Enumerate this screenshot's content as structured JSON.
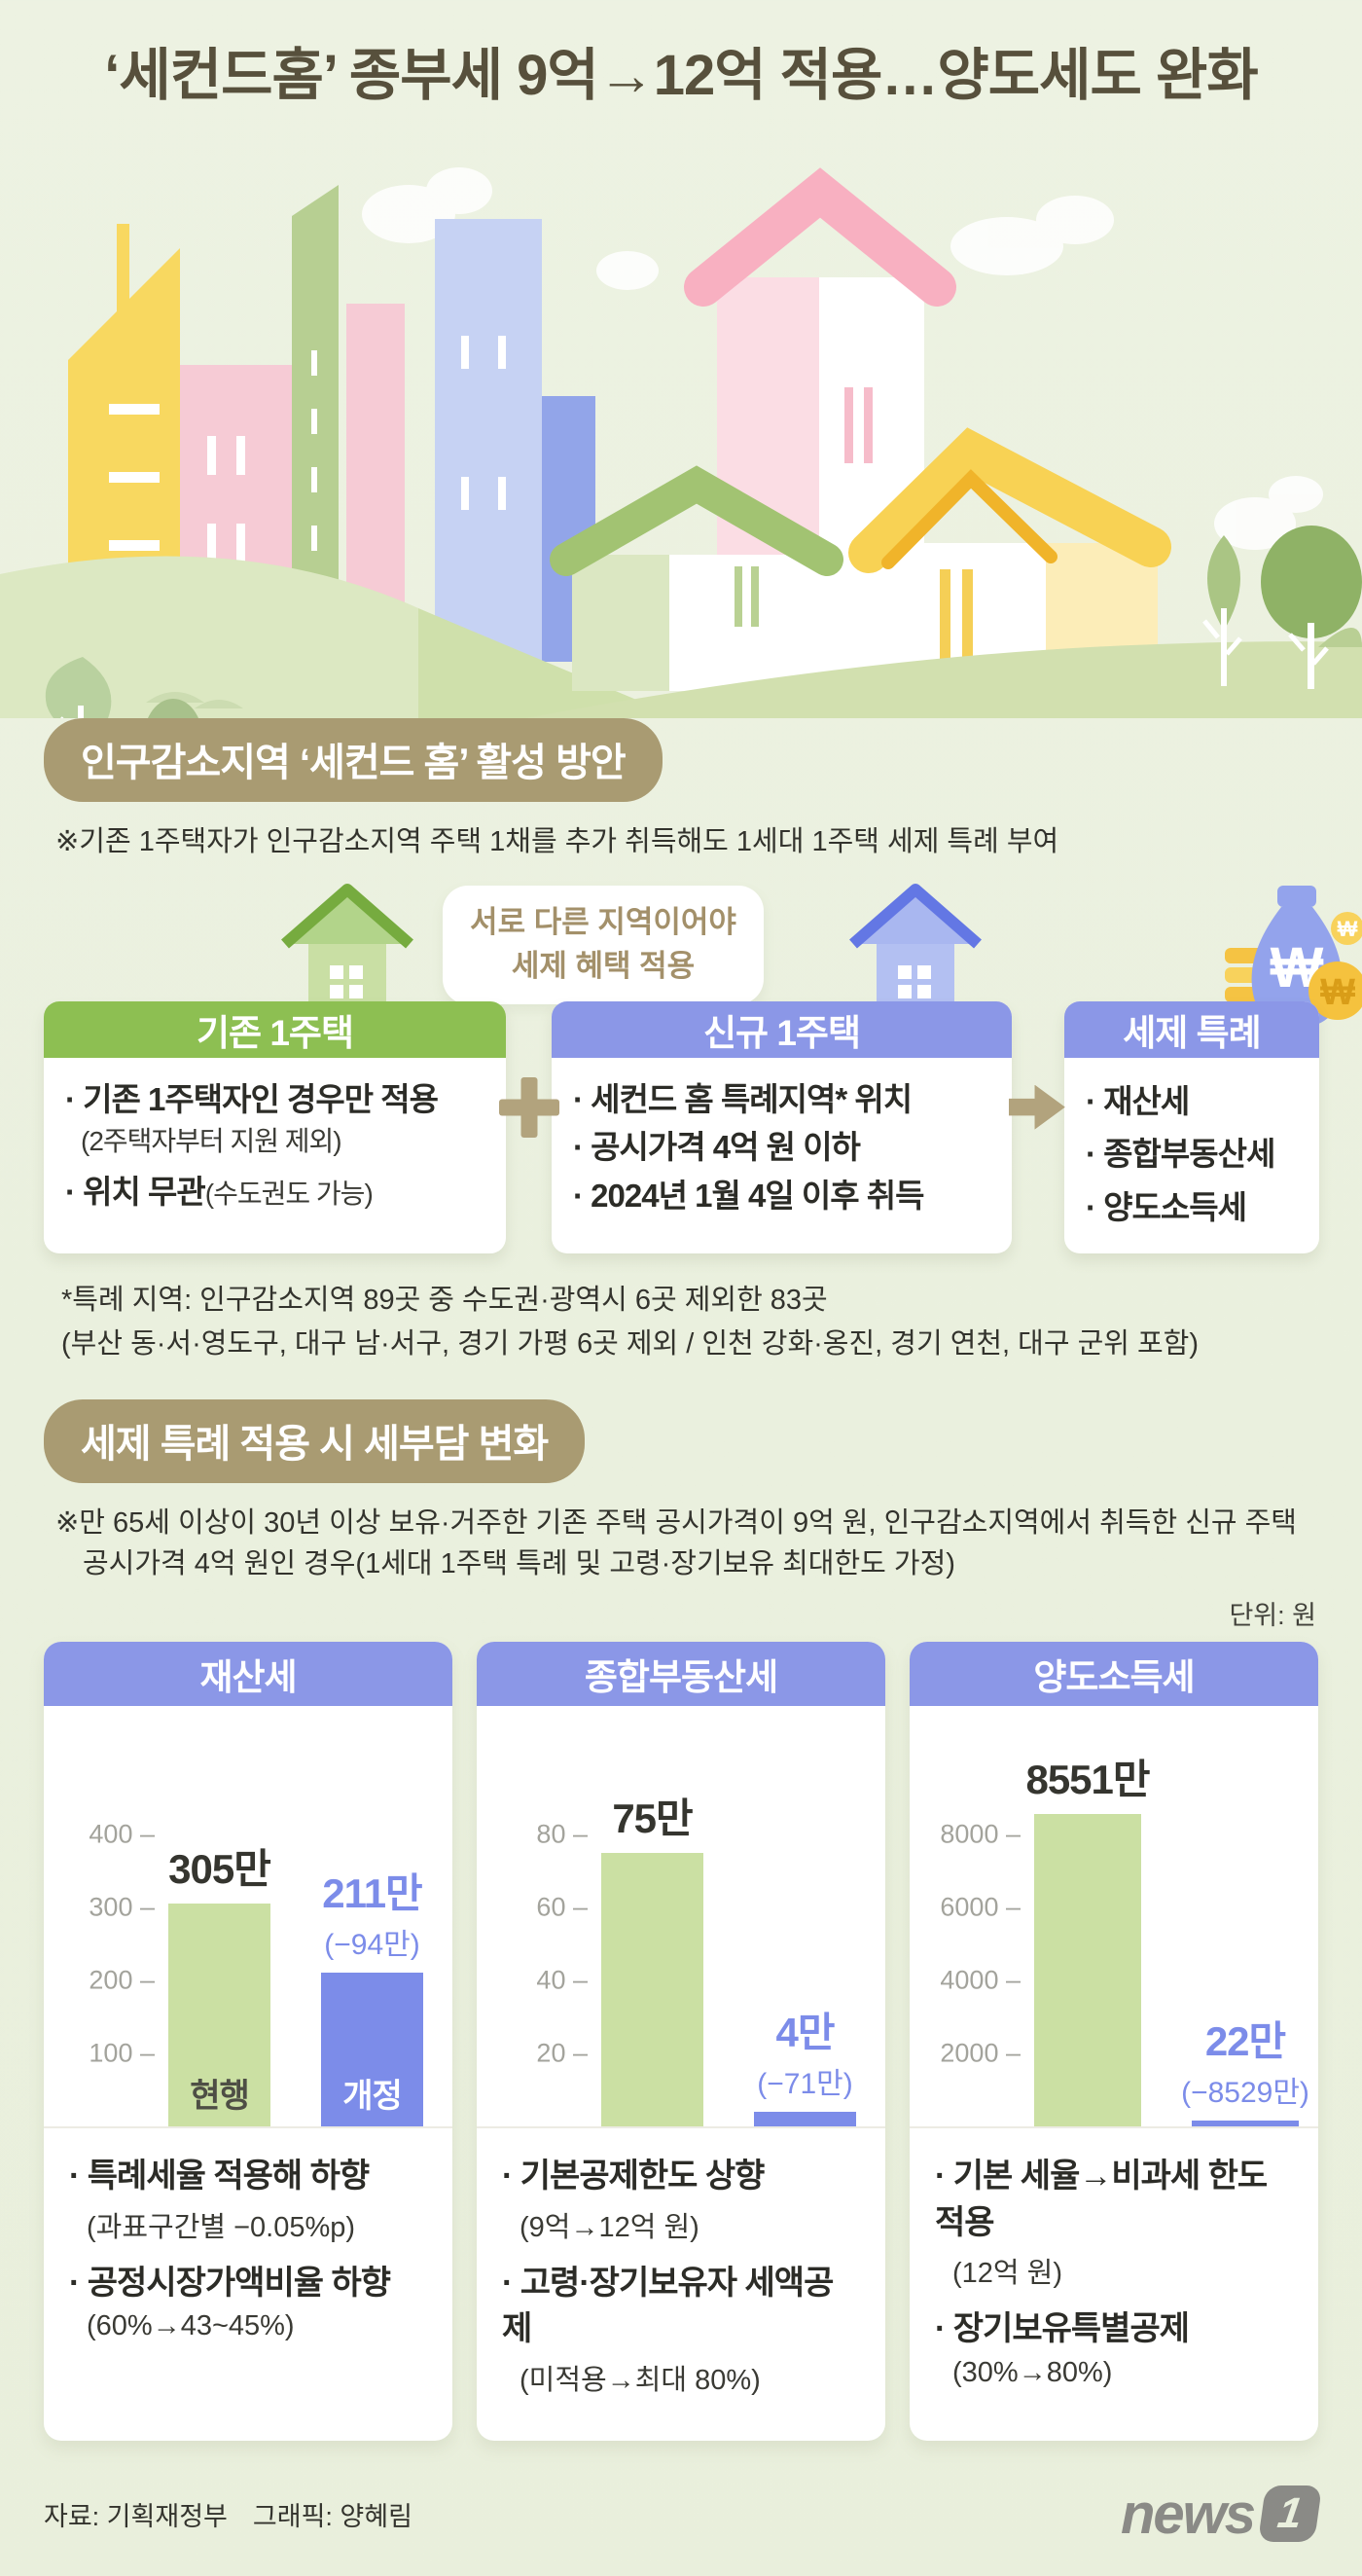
{
  "title": "‘세컨드홈’ 종부세 9억→12억 적용…양도세도 완화",
  "section1": {
    "heading": "인구감소지역 ‘세컨드 홈’ 활성 방안",
    "note": "※기존 1주택자가 인구감소지역 주택 1채를 추가 취득해도 1세대 1주택 세제 특례 부여",
    "bubble_line1": "서로 다른 지역이어야",
    "bubble_line2": "세제 혜택 적용",
    "boxes": [
      {
        "header": "기존 1주택",
        "item1_main": "기존 1주택자인 경우만 적용",
        "item1_sub": "(2주택자부터 지원 제외)",
        "item2_main": "위치 무관",
        "item2_sub": "(수도권도 가능)"
      },
      {
        "header": "신규 1주택",
        "item1": "세컨드 홈 특례지역* 위치",
        "item2": "공시가격 4억 원 이하",
        "item3": "2024년 1월 4일 이후 취득"
      },
      {
        "header": "세제 특례",
        "item1": "재산세",
        "item2": "종합부동산세",
        "item3": "양도소득세"
      }
    ],
    "footnote_line1": "*특례 지역: 인구감소지역 89곳 중 수도권·광역시 6곳 제외한 83곳",
    "footnote_line2": "(부산 동·서·영도구, 대구 남·서구, 경기 가평 6곳 제외 / 인천 강화·옹진, 경기 연천, 대구 군위 포함)"
  },
  "section2": {
    "heading": "세제 특례 적용 시 세부담 변화",
    "note_line1": "※만 65세 이상이 30년 이상 보유·거주한 기존 주택 공시가격이 9억 원, 인구감소지역에서 취득한 신규 주택",
    "note_line2": "공시가격 4억 원인 경우(1세대 1주택 특례 및 고령·장기보유 최대한도 가정)",
    "unit": "단위: 원"
  },
  "chart_data": [
    {
      "type": "bar",
      "title": "재산세",
      "ticks": [
        400,
        300,
        200,
        100
      ],
      "axis_max": 480,
      "bars": [
        {
          "name": "현행",
          "value": 305,
          "label": "305만",
          "color": "#cbe0a3"
        },
        {
          "name": "개정",
          "value": 211,
          "label": "211만",
          "delta": "(−94만)",
          "color": "#7c8ce9"
        }
      ],
      "notes": [
        {
          "main": "특례세율 적용해 하향",
          "sub": "(과표구간별 −0.05%p)"
        },
        {
          "main": "공정시장가액비율 하향",
          "sub": "(60%→43~45%)"
        }
      ]
    },
    {
      "type": "bar",
      "title": "종합부동산세",
      "ticks": [
        80,
        60,
        40,
        20
      ],
      "axis_max": 96,
      "bars": [
        {
          "value": 75,
          "label": "75만",
          "color": "#cbe0a3"
        },
        {
          "value": 4,
          "label": "4만",
          "delta": "(−71만)",
          "color": "#7c8ce9"
        }
      ],
      "notes": [
        {
          "main": "기본공제한도 상향",
          "sub": "(9억→12억 원)"
        },
        {
          "main": "고령·장기보유자 세액공제",
          "sub": "(미적용→최대 80%)"
        }
      ]
    },
    {
      "type": "bar",
      "title": "양도소득세",
      "ticks": [
        8000,
        6000,
        4000,
        2000
      ],
      "axis_max": 9600,
      "bars": [
        {
          "value": 8551,
          "label": "8551만",
          "color": "#cbe0a3"
        },
        {
          "value": 22,
          "label": "22만",
          "delta": "(−8529만)",
          "color": "#7c8ce9"
        }
      ],
      "notes": [
        {
          "main": "기본 세율→비과세 한도 적용",
          "sub": "(12억 원)"
        },
        {
          "main": "장기보유특별공제",
          "sub": "(30%→80%)"
        }
      ]
    }
  ],
  "footer": {
    "source": "자료: 기획재정부",
    "credit": "그래픽: 양혜림",
    "logo_word": "news",
    "logo_badge": "1"
  },
  "colors": {
    "accent_tan": "#a99b72",
    "green_header": "#8dbf52",
    "blue_header": "#8b97e7",
    "bar_green": "#cbe0a3",
    "bar_blue": "#7c8ce9",
    "title_text": "#57503c"
  }
}
